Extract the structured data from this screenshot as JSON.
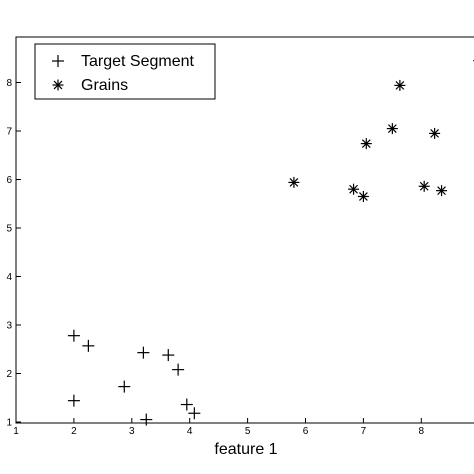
{
  "chart_data": {
    "type": "scatter",
    "title": "",
    "xlabel": "feature 1",
    "ylabel": "",
    "xlim": [
      1,
      9
    ],
    "ylim": [
      1,
      9
    ],
    "x_ticks": [
      "1",
      "2",
      "3",
      "4",
      "5",
      "6",
      "7",
      "8"
    ],
    "y_ticks": [
      "1",
      "2",
      "3",
      "4",
      "5",
      "6",
      "7",
      "8"
    ],
    "grid": false,
    "legend_position": "top-left",
    "series": [
      {
        "name": "Target Segment",
        "marker": "plus",
        "color": "#000000",
        "points": [
          [
            2.0,
            2.78
          ],
          [
            2.25,
            2.57
          ],
          [
            2.0,
            1.44
          ],
          [
            2.87,
            1.73
          ],
          [
            3.2,
            2.43
          ],
          [
            3.25,
            1.05
          ],
          [
            3.63,
            2.38
          ],
          [
            3.8,
            2.08
          ],
          [
            3.95,
            1.36
          ],
          [
            4.08,
            1.18
          ],
          [
            9.0,
            8.45
          ]
        ]
      },
      {
        "name": "Grains",
        "marker": "asterisk",
        "color": "#000000",
        "points": [
          [
            5.8,
            5.94
          ],
          [
            6.83,
            5.8
          ],
          [
            7.0,
            5.65
          ],
          [
            7.05,
            6.74
          ],
          [
            7.5,
            7.05
          ],
          [
            7.63,
            7.94
          ],
          [
            8.05,
            5.86
          ],
          [
            8.23,
            6.95
          ],
          [
            8.35,
            5.77
          ]
        ]
      }
    ]
  }
}
